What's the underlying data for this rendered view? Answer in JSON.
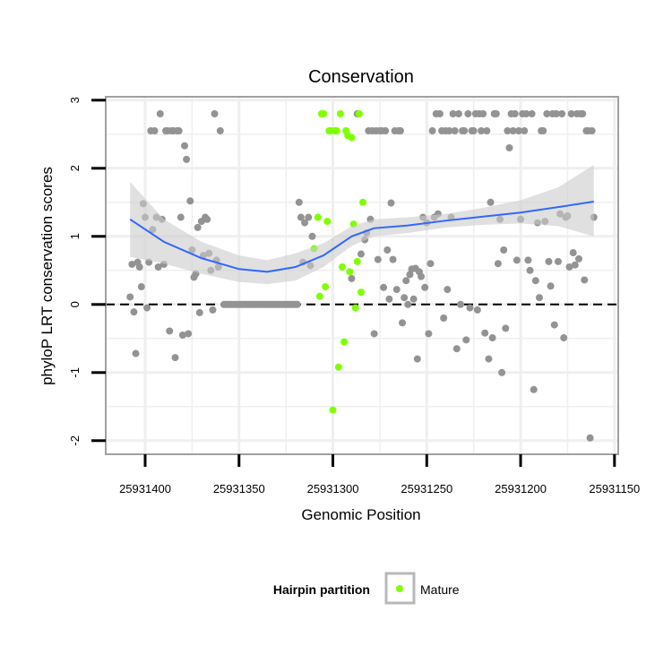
{
  "chart_data": {
    "type": "scatter",
    "title": "Conservation",
    "xlabel": "Genomic Position",
    "ylabel": "phyloP LRT conservation scores",
    "x_ticks": [
      25931400,
      25931350,
      25931300,
      25931250,
      25931200,
      25931150
    ],
    "x_tick_labels": [
      "25931400",
      "25931350",
      "25931300",
      "25931250",
      "25931200",
      "25931150"
    ],
    "y_ticks": [
      -2,
      -1,
      0,
      1,
      2,
      3
    ],
    "y_tick_labels": [
      "-2",
      "-1",
      "0",
      "1",
      "2",
      "3"
    ],
    "xlim": [
      25931421,
      25931148
    ],
    "x_reversed": true,
    "ylim": [
      -2.2,
      3.05
    ],
    "grid": true,
    "reference_line": {
      "y": 0,
      "style": "dashed"
    },
    "legend": {
      "title": "Hairpin partition",
      "position": "bottom",
      "entries": [
        "Mature"
      ]
    },
    "colors": {
      "other": "#939393",
      "mature": "#7fff00",
      "smooth": "#3366ff",
      "ribbon": "#cccccc",
      "panel_border": "#a0a0a0",
      "grid": "#efefef"
    },
    "series": [
      {
        "name": "Mature",
        "points": [
          [
            25931310,
            0.82
          ],
          [
            25931308,
            1.28
          ],
          [
            25931307,
            0.12
          ],
          [
            25931306,
            2.8
          ],
          [
            25931305,
            2.8
          ],
          [
            25931304,
            0.26
          ],
          [
            25931303,
            1.22
          ],
          [
            25931302,
            2.55
          ],
          [
            25931301,
            2.55
          ],
          [
            25931300,
            -1.55
          ],
          [
            25931299,
            2.55
          ],
          [
            25931298,
            2.55
          ],
          [
            25931297,
            -0.92
          ],
          [
            25931296,
            2.8
          ],
          [
            25931295,
            0.55
          ],
          [
            25931294,
            -0.55
          ],
          [
            25931293,
            2.55
          ],
          [
            25931292,
            2.48
          ],
          [
            25931291,
            0.48
          ],
          [
            25931290,
            2.45
          ],
          [
            25931289,
            1.18
          ],
          [
            25931288,
            -0.05
          ],
          [
            25931287,
            0.63
          ],
          [
            25931286,
            2.8
          ],
          [
            25931285,
            0.18
          ],
          [
            25931284,
            1.5
          ]
        ]
      },
      {
        "name": "",
        "points": [
          [
            25931408,
            0.11
          ],
          [
            25931407,
            0.59
          ],
          [
            25931406,
            -0.11
          ],
          [
            25931405,
            -0.72
          ],
          [
            25931404,
            0.62
          ],
          [
            25931403,
            0.55
          ],
          [
            25931402,
            0.26
          ],
          [
            25931401,
            1.48
          ],
          [
            25931400,
            1.28
          ],
          [
            25931399,
            -0.05
          ],
          [
            25931398,
            0.62
          ],
          [
            25931397,
            2.55
          ],
          [
            25931396,
            1.1
          ],
          [
            25931395,
            2.55
          ],
          [
            25931394,
            1.28
          ],
          [
            25931393,
            0.55
          ],
          [
            25931392,
            2.8
          ],
          [
            25931391,
            1.25
          ],
          [
            25931390,
            0.59
          ],
          [
            25931389,
            2.55
          ],
          [
            25931388,
            2.55
          ],
          [
            25931387,
            -0.39
          ],
          [
            25931386,
            2.55
          ],
          [
            25931385,
            2.55
          ],
          [
            25931384,
            -0.78
          ],
          [
            25931383,
            2.55
          ],
          [
            25931382,
            2.55
          ],
          [
            25931381,
            1.28
          ],
          [
            25931380,
            -0.45
          ],
          [
            25931379,
            2.33
          ],
          [
            25931378,
            2.13
          ],
          [
            25931377,
            -0.43
          ],
          [
            25931376,
            1.52
          ],
          [
            25931375,
            0.8
          ],
          [
            25931374,
            0.4
          ],
          [
            25931373,
            0.45
          ],
          [
            25931372,
            1.13
          ],
          [
            25931371,
            -0.12
          ],
          [
            25931370,
            1.22
          ],
          [
            25931369,
            0.72
          ],
          [
            25931368,
            1.28
          ],
          [
            25931367,
            1.25
          ],
          [
            25931366,
            0.75
          ],
          [
            25931365,
            0.5
          ],
          [
            25931364,
            -0.08
          ],
          [
            25931363,
            2.8
          ],
          [
            25931362,
            0.65
          ],
          [
            25931361,
            0.55
          ],
          [
            25931360,
            2.55
          ],
          [
            25931358,
            0.0
          ],
          [
            25931357,
            0.0
          ],
          [
            25931356,
            0.0
          ],
          [
            25931355,
            0.0
          ],
          [
            25931354,
            0.0
          ],
          [
            25931353,
            0.0
          ],
          [
            25931352,
            0.0
          ],
          [
            25931351,
            0.0
          ],
          [
            25931350,
            0.0
          ],
          [
            25931349,
            0.0
          ],
          [
            25931348,
            0.0
          ],
          [
            25931347,
            0.0
          ],
          [
            25931346,
            0.0
          ],
          [
            25931345,
            0.0
          ],
          [
            25931344,
            0.0
          ],
          [
            25931343,
            0.0
          ],
          [
            25931342,
            0.0
          ],
          [
            25931341,
            0.0
          ],
          [
            25931340,
            0.0
          ],
          [
            25931339,
            0.0
          ],
          [
            25931338,
            0.0
          ],
          [
            25931337,
            0.0
          ],
          [
            25931336,
            0.0
          ],
          [
            25931335,
            0.0
          ],
          [
            25931334,
            0.0
          ],
          [
            25931333,
            0.0
          ],
          [
            25931332,
            0.0
          ],
          [
            25931331,
            0.0
          ],
          [
            25931330,
            0.0
          ],
          [
            25931329,
            0.0
          ],
          [
            25931328,
            0.0
          ],
          [
            25931327,
            0.0
          ],
          [
            25931326,
            0.0
          ],
          [
            25931325,
            0.0
          ],
          [
            25931324,
            0.0
          ],
          [
            25931323,
            0.0
          ],
          [
            25931322,
            0.0
          ],
          [
            25931321,
            0.0
          ],
          [
            25931320,
            0.0
          ],
          [
            25931319,
            0.0
          ],
          [
            25931318,
            1.5
          ],
          [
            25931317,
            1.28
          ],
          [
            25931316,
            0.62
          ],
          [
            25931315,
            1.2
          ],
          [
            25931313,
            1.28
          ],
          [
            25931312,
            0.57
          ],
          [
            25931311,
            1.0
          ],
          [
            25931290,
            0.38
          ],
          [
            25931287,
            2.8
          ],
          [
            25931285,
            0.74
          ],
          [
            25931283,
            0.95
          ],
          [
            25931282,
            1.05
          ],
          [
            25931281,
            2.55
          ],
          [
            25931280,
            1.25
          ],
          [
            25931279,
            2.55
          ],
          [
            25931278,
            -0.43
          ],
          [
            25931277,
            2.55
          ],
          [
            25931276,
            0.66
          ],
          [
            25931275,
            2.55
          ],
          [
            25931274,
            2.55
          ],
          [
            25931273,
            0.25
          ],
          [
            25931272,
            2.55
          ],
          [
            25931271,
            0.8
          ],
          [
            25931270,
            0.08
          ],
          [
            25931269,
            1.49
          ],
          [
            25931268,
            0.66
          ],
          [
            25931267,
            2.55
          ],
          [
            25931266,
            0.22
          ],
          [
            25931265,
            2.55
          ],
          [
            25931264,
            2.55
          ],
          [
            25931263,
            -0.27
          ],
          [
            25931262,
            0.1
          ],
          [
            25931261,
            0.35
          ],
          [
            25931260,
            0.0
          ],
          [
            25931259,
            0.44
          ],
          [
            25931258,
            0.52
          ],
          [
            25931257,
            0.08
          ],
          [
            25931256,
            0.53
          ],
          [
            25931255,
            -0.8
          ],
          [
            25931254,
            0.48
          ],
          [
            25931253,
            0.41
          ],
          [
            25931252,
            1.28
          ],
          [
            25931251,
            0.25
          ],
          [
            25931250,
            1.2
          ],
          [
            25931249,
            -0.43
          ],
          [
            25931248,
            0.6
          ],
          [
            25931247,
            2.55
          ],
          [
            25931246,
            1.28
          ],
          [
            25931245,
            2.8
          ],
          [
            25931244,
            1.33
          ],
          [
            25931243,
            2.8
          ],
          [
            25931242,
            2.55
          ],
          [
            25931241,
            -0.2
          ],
          [
            25931240,
            2.55
          ],
          [
            25931239,
            0.22
          ],
          [
            25931238,
            2.55
          ],
          [
            25931237,
            1.28
          ],
          [
            25931236,
            2.8
          ],
          [
            25931235,
            2.55
          ],
          [
            25931234,
            -0.65
          ],
          [
            25931233,
            2.8
          ],
          [
            25931232,
            0.0
          ],
          [
            25931231,
            2.55
          ],
          [
            25931230,
            2.55
          ],
          [
            25931229,
            -0.52
          ],
          [
            25931228,
            2.8
          ],
          [
            25931227,
            -0.05
          ],
          [
            25931226,
            2.55
          ],
          [
            25931225,
            2.55
          ],
          [
            25931224,
            2.8
          ],
          [
            25931223,
            -0.08
          ],
          [
            25931222,
            2.8
          ],
          [
            25931221,
            2.55
          ],
          [
            25931220,
            2.8
          ],
          [
            25931219,
            -0.42
          ],
          [
            25931218,
            2.55
          ],
          [
            25931217,
            -0.8
          ],
          [
            25931216,
            1.5
          ],
          [
            25931215,
            -0.49
          ],
          [
            25931214,
            2.8
          ],
          [
            25931213,
            2.8
          ],
          [
            25931212,
            0.6
          ],
          [
            25931211,
            1.25
          ],
          [
            25931210,
            -1.0
          ],
          [
            25931209,
            0.8
          ],
          [
            25931208,
            -0.35
          ],
          [
            25931207,
            2.55
          ],
          [
            25931206,
            2.3
          ],
          [
            25931205,
            2.8
          ],
          [
            25931204,
            2.55
          ],
          [
            25931203,
            2.8
          ],
          [
            25931202,
            0.65
          ],
          [
            25931201,
            2.55
          ],
          [
            25931200,
            1.25
          ],
          [
            25931199,
            2.8
          ],
          [
            25931198,
            2.55
          ],
          [
            25931197,
            2.8
          ],
          [
            25931196,
            0.65
          ],
          [
            25931195,
            0.5
          ],
          [
            25931194,
            2.8
          ],
          [
            25931193,
            -1.25
          ],
          [
            25931192,
            0.35
          ],
          [
            25931191,
            1.2
          ],
          [
            25931190,
            0.1
          ],
          [
            25931189,
            2.55
          ],
          [
            25931188,
            2.55
          ],
          [
            25931187,
            1.22
          ],
          [
            25931186,
            2.8
          ],
          [
            25931185,
            0.63
          ],
          [
            25931184,
            0.27
          ],
          [
            25931183,
            2.8
          ],
          [
            25931182,
            -0.3
          ],
          [
            25931181,
            2.8
          ],
          [
            25931180,
            0.63
          ],
          [
            25931179,
            1.33
          ],
          [
            25931178,
            2.8
          ],
          [
            25931177,
            -0.49
          ],
          [
            25931176,
            1.28
          ],
          [
            25931175,
            1.3
          ],
          [
            25931174,
            0.55
          ],
          [
            25931173,
            2.8
          ],
          [
            25931172,
            0.76
          ],
          [
            25931171,
            0.58
          ],
          [
            25931170,
            2.8
          ],
          [
            25931169,
            0.67
          ],
          [
            25931168,
            2.8
          ],
          [
            25931167,
            2.8
          ],
          [
            25931166,
            0.36
          ],
          [
            25931165,
            2.55
          ],
          [
            25931164,
            2.55
          ],
          [
            25931163,
            -1.96
          ],
          [
            25931162,
            2.55
          ],
          [
            25931161,
            1.28
          ]
        ]
      }
    ],
    "smooth_fit": {
      "x": [
        25931408,
        25931390,
        25931370,
        25931350,
        25931335,
        25931320,
        25931305,
        25931290,
        25931278,
        25931260,
        25931240,
        25931220,
        25931200,
        25931180,
        25931161
      ],
      "y": [
        1.25,
        0.92,
        0.68,
        0.52,
        0.48,
        0.55,
        0.72,
        1.0,
        1.12,
        1.16,
        1.23,
        1.29,
        1.35,
        1.43,
        1.51
      ],
      "ci_low": [
        0.7,
        0.6,
        0.45,
        0.33,
        0.3,
        0.35,
        0.55,
        0.86,
        1.0,
        1.05,
        1.13,
        1.17,
        1.19,
        1.15,
        1.0
      ],
      "ci_high": [
        1.8,
        1.25,
        0.92,
        0.72,
        0.65,
        0.75,
        0.9,
        1.15,
        1.25,
        1.28,
        1.33,
        1.42,
        1.53,
        1.72,
        2.05
      ]
    }
  }
}
